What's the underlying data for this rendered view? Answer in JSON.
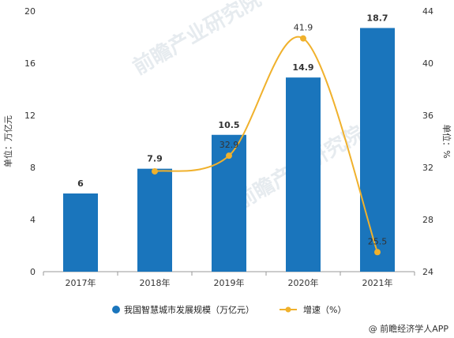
{
  "chart_data": {
    "type": "bar",
    "categories": [
      "2017年",
      "2018年",
      "2019年",
      "2020年",
      "2021年"
    ],
    "series": [
      {
        "name": "我国智慧城市发展规模（万亿元）",
        "type": "bar",
        "axis": "left",
        "values": [
          6,
          7.9,
          10.5,
          14.9,
          18.7
        ],
        "color": "#1a75bc"
      },
      {
        "name": "增速（%）",
        "type": "line",
        "axis": "right",
        "values": [
          null,
          31.7,
          32.9,
          41.9,
          25.5
        ],
        "labels": [
          "",
          "",
          "32.9",
          "41.9",
          "25.5"
        ],
        "color": "#f0b12c"
      }
    ],
    "bar_labels": [
      "6",
      "7.9",
      "10.5",
      "14.9",
      "18.7"
    ],
    "y_left": {
      "label": "单位：万亿元",
      "ylim": [
        0,
        20
      ],
      "ticks": [
        "0",
        "4",
        "8",
        "12",
        "16",
        "20"
      ]
    },
    "y_right": {
      "label": "单位：%",
      "ylim": [
        24,
        44
      ],
      "ticks": [
        "24",
        "28",
        "32",
        "36",
        "40",
        "44"
      ]
    },
    "grid": false,
    "legend_position": "bottom"
  },
  "watermark": {
    "text": "前瞻产业研究院"
  },
  "credit": "@ 前瞻经济学人APP"
}
